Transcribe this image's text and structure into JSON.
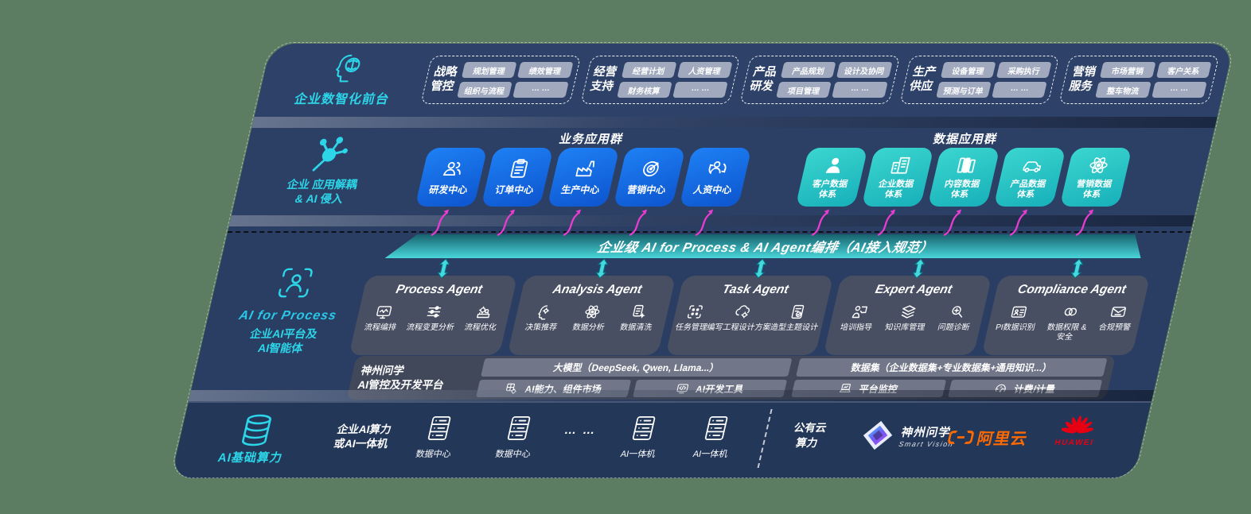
{
  "colors": {
    "background": "#5d7d62",
    "panel_navy": "#2e4269",
    "accent_teal": "#2cd5e8",
    "business_blue": "#156ae8",
    "data_teal": "#24c2c4",
    "bus_bar_teal": "#3ed2d8",
    "arrow_pink": "#e93cd0",
    "aliyun_orange": "#ff6a00",
    "huawei_red": "#e60012"
  },
  "front_office": {
    "label": "企业数智化前台",
    "groups": [
      {
        "name": "战略",
        "name2": "管控",
        "pills": [
          "规划管理",
          "绩效管理",
          "组织与流程",
          "… …"
        ]
      },
      {
        "name": "经营",
        "name2": "支持",
        "pills": [
          "经营计划",
          "人资管理",
          "财务核算",
          "… …"
        ]
      },
      {
        "name": "产品",
        "name2": "研发",
        "pills": [
          "产品规划",
          "设计及协同",
          "项目管理",
          "… …"
        ]
      },
      {
        "name": "生产",
        "name2": "供应",
        "pills": [
          "设备管理",
          "采购执行",
          "预测与订单",
          "… …"
        ]
      },
      {
        "name": "营销",
        "name2": "服务",
        "pills": [
          "市场营销",
          "客户关系",
          "整车物流",
          "… …"
        ]
      }
    ]
  },
  "app_layer": {
    "label1": "企业 应用解耦",
    "label2": "& AI 侵入",
    "business": {
      "title": "业务应用群",
      "items": [
        {
          "label": "研发中心",
          "icon": "people-icon"
        },
        {
          "label": "订单中心",
          "icon": "clipboard-icon"
        },
        {
          "label": "生产中心",
          "icon": "factory-icon"
        },
        {
          "label": "营销中心",
          "icon": "target-icon"
        },
        {
          "label": "人资中心",
          "icon": "people-flow-icon"
        }
      ]
    },
    "data": {
      "title": "数据应用群",
      "items": [
        {
          "label": "客户数据",
          "label2": "体系",
          "icon": "person-icon"
        },
        {
          "label": "企业数据",
          "label2": "体系",
          "icon": "building-icon"
        },
        {
          "label": "内容数据",
          "label2": "体系",
          "icon": "files-icon"
        },
        {
          "label": "产品数据",
          "label2": "体系",
          "icon": "car-icon"
        },
        {
          "label": "营销数据",
          "label2": "体系",
          "icon": "atom-icon"
        }
      ]
    }
  },
  "ai_bus": {
    "label": "企业级 AI for Process & AI Agent编排（AI接入规范）"
  },
  "process_layer": {
    "label_en": "AI for Process",
    "label_cn1": "企业AI平台及",
    "label_cn2": "AI智能体",
    "agents": [
      {
        "title": "Process Agent",
        "items": [
          {
            "label": "流程编排",
            "icon": "wave-monitor-icon"
          },
          {
            "label": "流程变更分析",
            "icon": "sliders-icon"
          },
          {
            "label": "流程优化",
            "icon": "gear-stack-icon"
          }
        ]
      },
      {
        "title": "Analysis Agent",
        "items": [
          {
            "label": "决策推荐",
            "icon": "head-gear-icon"
          },
          {
            "label": "数据分析",
            "icon": "atom-icon"
          },
          {
            "label": "数据清洗",
            "icon": "doc-clean-icon"
          }
        ]
      },
      {
        "title": "Task Agent",
        "items": [
          {
            "label": "任务管理",
            "icon": "grid-scan-icon"
          },
          {
            "label": "编写工程设计方案",
            "icon": "cloud-gear-icon"
          },
          {
            "label": "造型主题设计",
            "icon": "tablet-check-icon"
          }
        ]
      },
      {
        "title": "Expert Agent",
        "items": [
          {
            "label": "培训指导",
            "icon": "trainer-icon"
          },
          {
            "label": "知识库管理",
            "icon": "layers-icon"
          },
          {
            "label": "问题诊断",
            "icon": "diagnose-icon"
          }
        ]
      },
      {
        "title": "Compliance Agent",
        "items": [
          {
            "label": "PI数据识别",
            "icon": "id-card-icon"
          },
          {
            "label": "数据权限 & 安全",
            "icon": "rings-icon"
          },
          {
            "label": "合规预警",
            "icon": "mail-alert-icon"
          }
        ]
      }
    ]
  },
  "platform": {
    "name1": "神州问学",
    "name2": "AI管控及开发平台",
    "model_bar": "大模型（DeepSeek, Qwen, Llama...）",
    "dataset_bar": "数据集（企业数据集+专业数据集+通用知识...）",
    "cells": [
      {
        "label": "AI能力、组件市场",
        "icon": "grid-gear-icon"
      },
      {
        "label": "AI开发工具",
        "icon": "code-tool-icon"
      },
      {
        "label": "平台监控",
        "icon": "laptop-chart-icon"
      },
      {
        "label": "计费/计量",
        "icon": "gauge-icon"
      }
    ]
  },
  "infra": {
    "label": "AI基础算力",
    "compute1": "企业AI算力",
    "compute2": "或AI一体机",
    "nodes": [
      {
        "label": "数据中心",
        "icon": "server-icon"
      },
      {
        "label": "数据中心",
        "icon": "server-icon"
      },
      {
        "label": "AI一体机",
        "icon": "server-icon"
      },
      {
        "label": "AI一体机",
        "icon": "server-icon"
      }
    ],
    "dots": "… …",
    "cloud1": "公有云",
    "cloud2": "算力",
    "vendors": {
      "smartvision_cn": "神州问学",
      "smartvision_en": "Smart  Vision",
      "aliyun": "阿里云",
      "huawei": "HUAWEI"
    }
  }
}
